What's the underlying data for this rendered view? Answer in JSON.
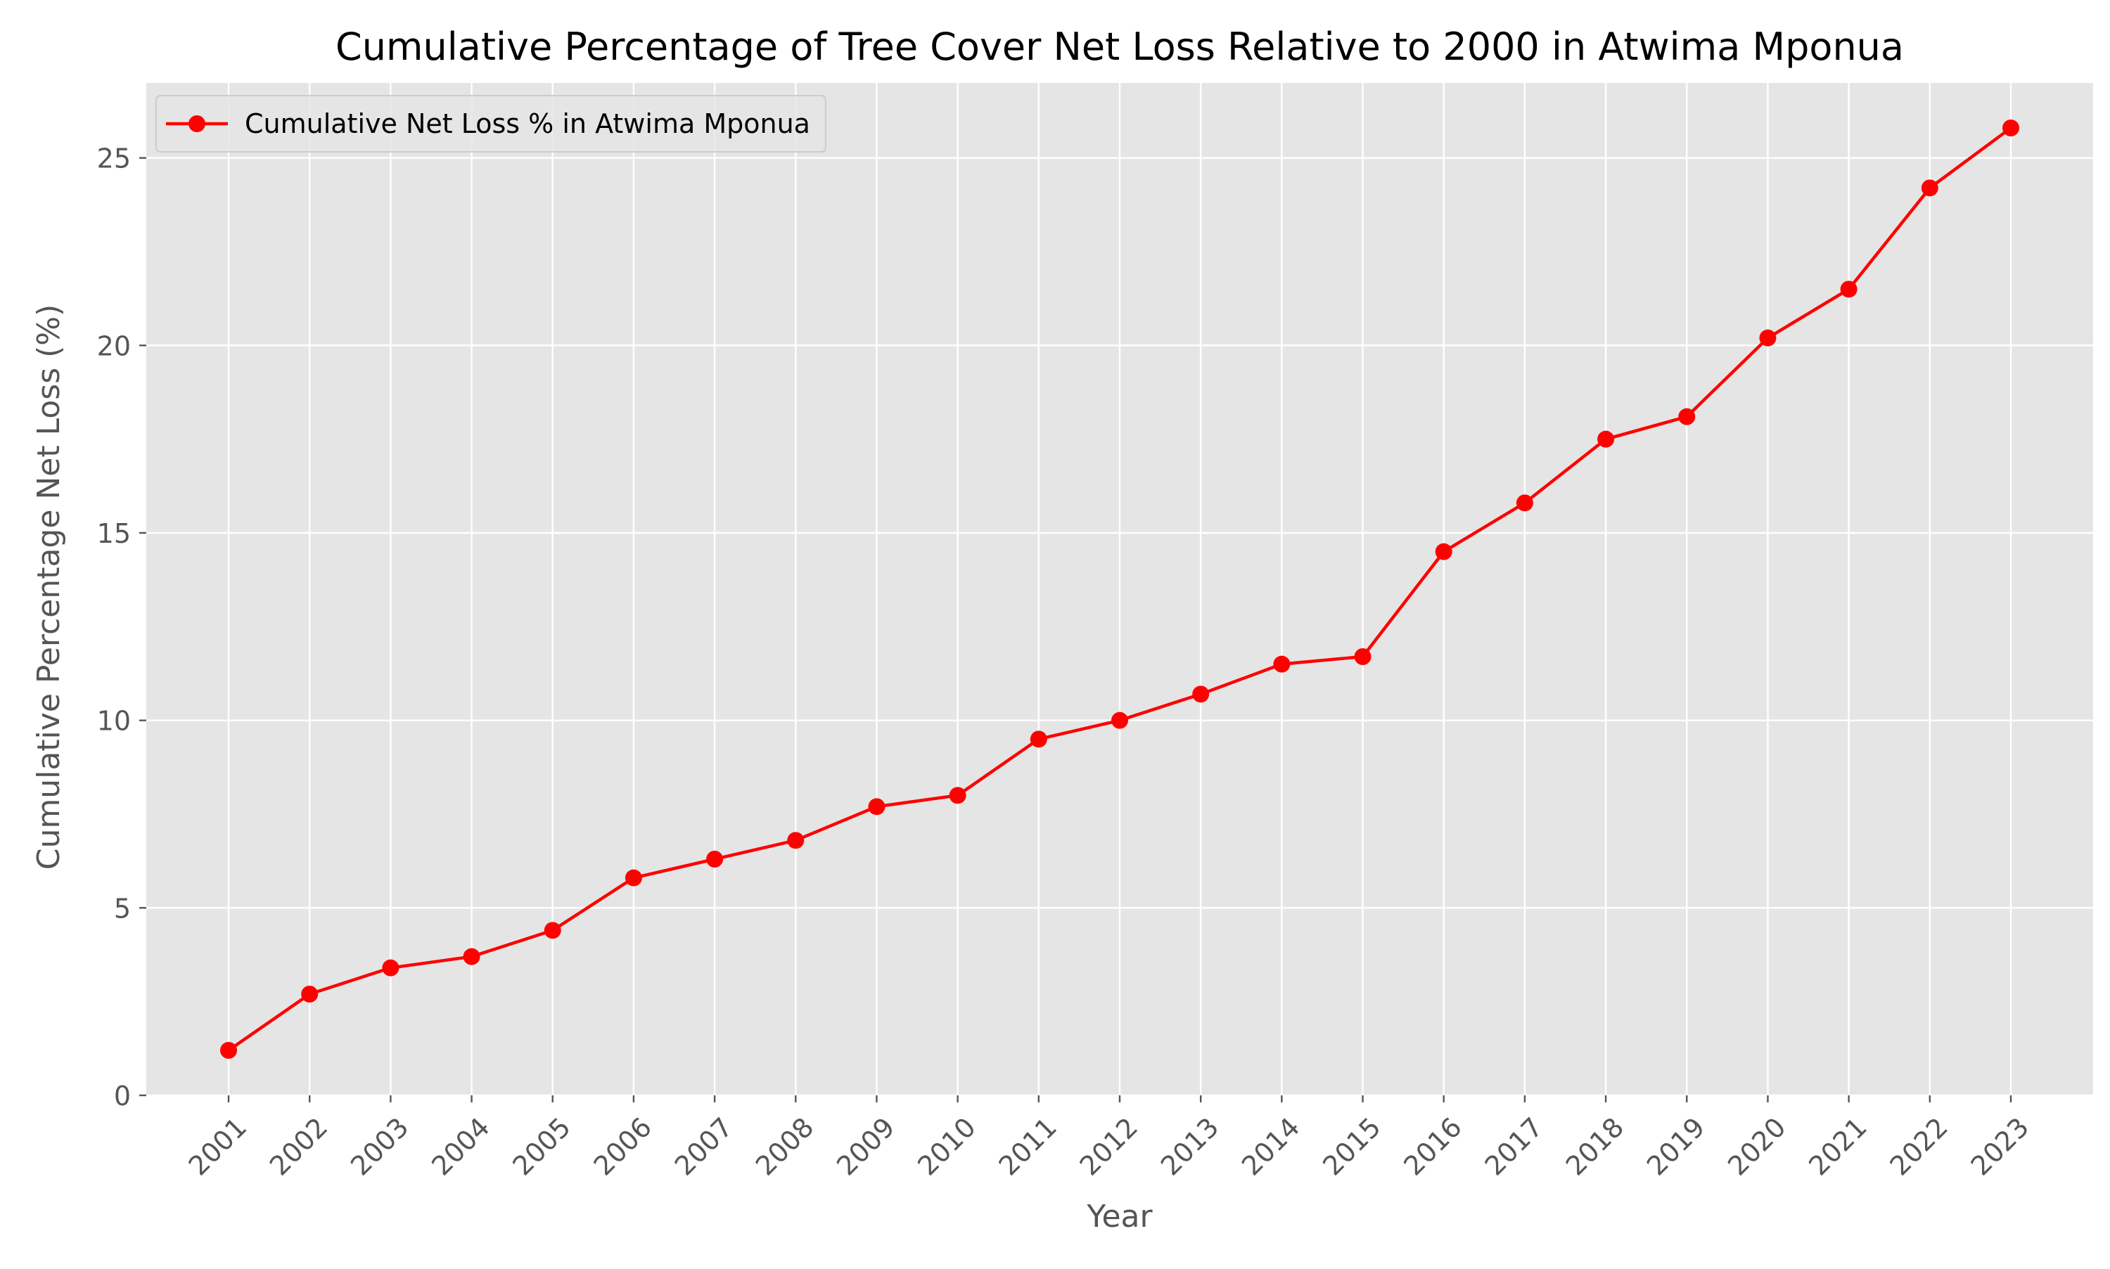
{
  "chart_data": {
    "type": "line",
    "title": "Cumulative Percentage of Tree Cover Net Loss Relative to 2000 in Atwima Mponua",
    "xlabel": "Year",
    "ylabel": "Cumulative Percentage Net Loss (%)",
    "categories": [
      "2001",
      "2002",
      "2003",
      "2004",
      "2005",
      "2006",
      "2007",
      "2008",
      "2009",
      "2010",
      "2011",
      "2012",
      "2013",
      "2014",
      "2015",
      "2016",
      "2017",
      "2018",
      "2019",
      "2020",
      "2021",
      "2022",
      "2023"
    ],
    "series": [
      {
        "name": "Cumulative Net Loss % in Atwima Mponua",
        "color": "#ff0000",
        "values": [
          1.2,
          2.7,
          3.4,
          3.7,
          4.4,
          5.8,
          6.3,
          6.8,
          7.7,
          8.0,
          9.5,
          10.0,
          10.7,
          11.5,
          11.7,
          14.5,
          15.8,
          17.5,
          18.1,
          20.2,
          21.5,
          24.2,
          25.8
        ]
      }
    ],
    "ylim": [
      0,
      27
    ],
    "yticks": [
      0,
      5,
      10,
      15,
      20,
      25
    ],
    "grid": true,
    "legend_position": "top-left",
    "background_color": "#e5e5e5",
    "grid_color": "#ffffff"
  }
}
